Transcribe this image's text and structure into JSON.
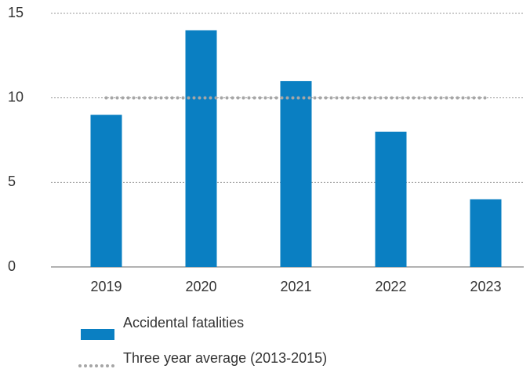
{
  "chart_data": {
    "type": "bar",
    "categories": [
      "2019",
      "2020",
      "2021",
      "2022",
      "2023"
    ],
    "series": [
      {
        "name": "Accidental fatalities",
        "type": "bar",
        "color": "#0a7fc2",
        "values": [
          9,
          14,
          11,
          8,
          4
        ]
      },
      {
        "name": "Three year average (2013-2015)",
        "type": "line",
        "color": "#a6a6a6",
        "values": [
          10,
          10,
          10,
          10,
          10
        ]
      }
    ],
    "ylim": [
      0,
      15
    ],
    "yticks": [
      0,
      5,
      10,
      15
    ],
    "grid": true
  }
}
